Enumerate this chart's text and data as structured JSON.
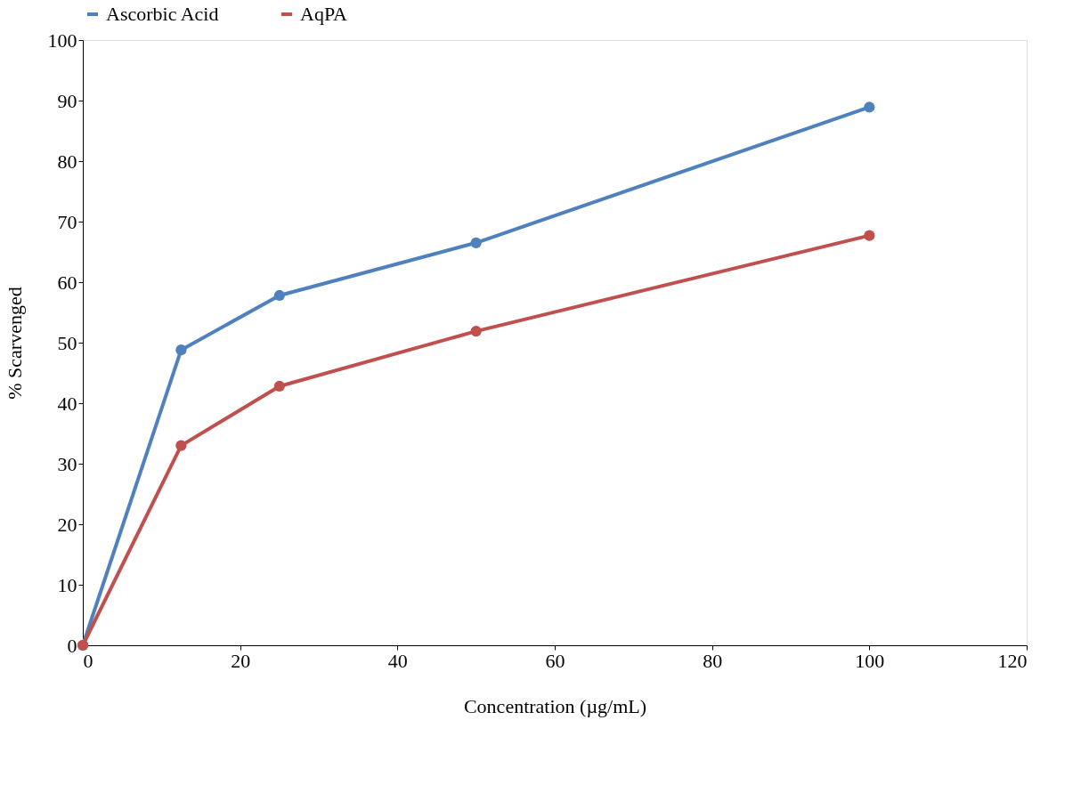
{
  "chart_data": {
    "type": "line",
    "xlabel": "Concentration  (µg/mL)",
    "ylabel": "% Scarvenged",
    "xlim": [
      0,
      120
    ],
    "xticks": [
      0,
      20,
      40,
      60,
      80,
      100,
      120
    ],
    "ylim": [
      0,
      100
    ],
    "yticks": [
      0,
      10,
      20,
      30,
      40,
      50,
      60,
      70,
      80,
      90,
      100
    ],
    "x": [
      0,
      12.5,
      25,
      50,
      100
    ],
    "grid": false,
    "legend": "top",
    "marker": "circle",
    "line_style": "solid",
    "series": [
      {
        "name": "Ascorbic Acid",
        "color": "#4f81bd",
        "values": [
          0,
          48.8,
          57.8,
          66.5,
          88.9
        ]
      },
      {
        "name": "AqPA",
        "color": "#c0504d",
        "values": [
          0,
          33.0,
          42.8,
          51.9,
          67.7
        ]
      }
    ]
  }
}
